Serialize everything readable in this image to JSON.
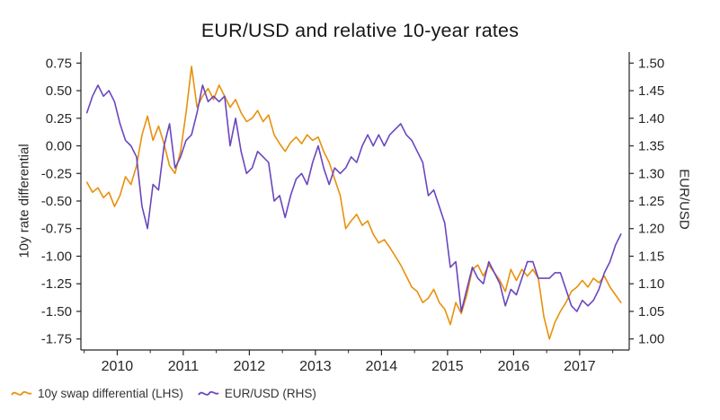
{
  "chart_data": {
    "type": "line",
    "title": "EUR/USD and relative 10-year rates",
    "grid": false,
    "legend_position": "bottom-left",
    "x_range": [
      2009.45,
      2017.75
    ],
    "x_ticks": [
      2010,
      2011,
      2012,
      2013,
      2014,
      2015,
      2016,
      2017
    ],
    "x_tick_labels": [
      "2010",
      "2011",
      "2012",
      "2013",
      "2014",
      "2015",
      "2016",
      "2017"
    ],
    "x_minor_ticks": [
      2009.5,
      2010.5,
      2011.5,
      2012.5,
      2013.5,
      2014.5,
      2015.5,
      2016.5,
      2017.5
    ],
    "left_axis": {
      "label": "10y rate differential",
      "range": [
        -1.85,
        0.85
      ],
      "ticks": [
        0.75,
        0.5,
        0.25,
        0.0,
        -0.25,
        -0.5,
        -0.75,
        -1.0,
        -1.25,
        -1.5,
        -1.75
      ],
      "tick_labels": [
        "0.75",
        "0.50",
        "0.25",
        "0.00",
        "-0.25",
        "-0.50",
        "-0.75",
        "-1.00",
        "-1.25",
        "-1.50",
        "-1.75"
      ]
    },
    "right_axis": {
      "label": "EUR/USD",
      "range": [
        0.98,
        1.52
      ],
      "ticks": [
        1.5,
        1.45,
        1.4,
        1.35,
        1.3,
        1.25,
        1.2,
        1.15,
        1.1,
        1.05,
        1.0
      ],
      "tick_labels": [
        "1.50",
        "1.45",
        "1.40",
        "1.35",
        "1.30",
        "1.25",
        "1.20",
        "1.15",
        "1.10",
        "1.05",
        "1.00"
      ]
    },
    "series": [
      {
        "key": "swap-differential",
        "name": "10y swap differential (LHS)",
        "axis": "left",
        "color": "#E8910C",
        "x_start": 2009.5417,
        "x_step": 0.0833333,
        "values": [
          -0.33,
          -0.42,
          -0.38,
          -0.47,
          -0.42,
          -0.55,
          -0.45,
          -0.28,
          -0.35,
          -0.18,
          0.1,
          0.27,
          0.05,
          0.18,
          0.02,
          -0.18,
          -0.25,
          -0.05,
          0.3,
          0.72,
          0.35,
          0.45,
          0.52,
          0.42,
          0.55,
          0.45,
          0.35,
          0.42,
          0.3,
          0.22,
          0.25,
          0.32,
          0.22,
          0.28,
          0.1,
          0.02,
          -0.05,
          0.03,
          0.08,
          0.02,
          0.1,
          0.05,
          0.08,
          -0.05,
          -0.15,
          -0.3,
          -0.45,
          -0.75,
          -0.68,
          -0.62,
          -0.72,
          -0.68,
          -0.8,
          -0.88,
          -0.85,
          -0.92,
          -1.0,
          -1.08,
          -1.18,
          -1.28,
          -1.32,
          -1.42,
          -1.38,
          -1.3,
          -1.42,
          -1.48,
          -1.62,
          -1.42,
          -1.52,
          -1.35,
          -1.12,
          -1.08,
          -1.18,
          -1.08,
          -1.15,
          -1.22,
          -1.32,
          -1.12,
          -1.22,
          -1.12,
          -1.18,
          -1.12,
          -1.2,
          -1.55,
          -1.75,
          -1.6,
          -1.5,
          -1.42,
          -1.32,
          -1.28,
          -1.22,
          -1.28,
          -1.2,
          -1.24,
          -1.18,
          -1.28,
          -1.35,
          -1.42
        ]
      },
      {
        "key": "eurusd",
        "name": "EUR/USD (RHS)",
        "axis": "right",
        "color": "#6A46BE",
        "x_start": 2009.5417,
        "x_step": 0.0833333,
        "values": [
          1.41,
          1.44,
          1.46,
          1.44,
          1.45,
          1.43,
          1.39,
          1.36,
          1.35,
          1.33,
          1.24,
          1.2,
          1.28,
          1.27,
          1.35,
          1.39,
          1.31,
          1.33,
          1.36,
          1.37,
          1.41,
          1.46,
          1.43,
          1.44,
          1.43,
          1.44,
          1.35,
          1.4,
          1.34,
          1.3,
          1.31,
          1.34,
          1.33,
          1.32,
          1.25,
          1.26,
          1.22,
          1.26,
          1.29,
          1.3,
          1.28,
          1.32,
          1.35,
          1.31,
          1.28,
          1.31,
          1.3,
          1.31,
          1.33,
          1.32,
          1.35,
          1.37,
          1.35,
          1.37,
          1.35,
          1.37,
          1.38,
          1.39,
          1.37,
          1.36,
          1.34,
          1.32,
          1.26,
          1.27,
          1.24,
          1.21,
          1.13,
          1.14,
          1.05,
          1.09,
          1.13,
          1.11,
          1.1,
          1.14,
          1.12,
          1.1,
          1.06,
          1.09,
          1.08,
          1.11,
          1.14,
          1.14,
          1.11,
          1.11,
          1.11,
          1.12,
          1.12,
          1.09,
          1.06,
          1.05,
          1.07,
          1.06,
          1.07,
          1.09,
          1.12,
          1.14,
          1.17,
          1.19
        ]
      }
    ]
  }
}
